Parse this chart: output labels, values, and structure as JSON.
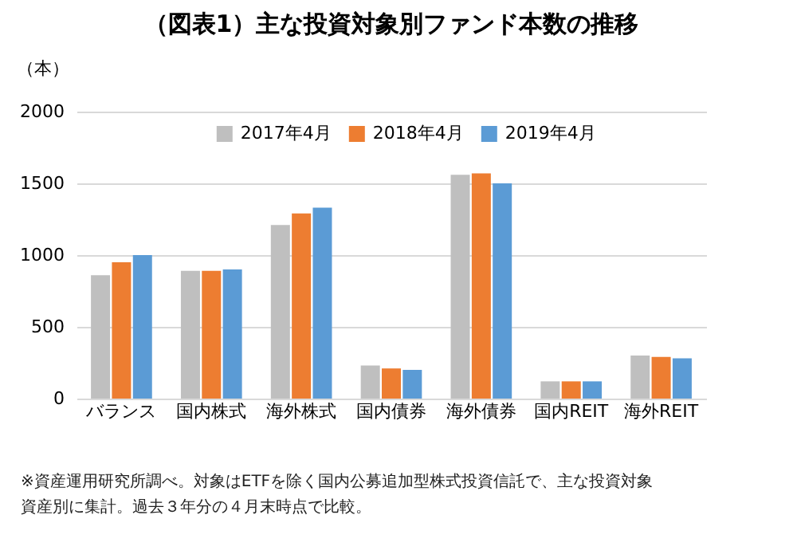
{
  "chart_data": {
    "type": "bar",
    "title": "（図表1）主な投資対象別ファンド本数の推移",
    "ylabel": "（本）",
    "categories": [
      "バランス",
      "国内株式",
      "海外株式",
      "国内債券",
      "海外債券",
      "国内REIT",
      "海外REIT"
    ],
    "series": [
      {
        "name": "2017年4月",
        "color": "#bfbfbf",
        "values": [
          860,
          890,
          1210,
          230,
          1560,
          120,
          300
        ]
      },
      {
        "name": "2018年4月",
        "color": "#ed7d31",
        "values": [
          950,
          890,
          1290,
          210,
          1570,
          120,
          290
        ]
      },
      {
        "name": "2019年4月",
        "color": "#5b9bd5",
        "values": [
          1000,
          900,
          1330,
          200,
          1500,
          120,
          280
        ]
      }
    ],
    "ylim": [
      0,
      2000
    ],
    "yticks": [
      0,
      500,
      1000,
      1500,
      2000
    ],
    "grid": "y",
    "legend": "top",
    "annotations": [
      "※資産運用研究所調べ。対象はETFを除く国内公募追加型株式投資信託で、主な投資対象",
      "資産別に集計。過去３年分の４月末時点で比較。"
    ]
  }
}
